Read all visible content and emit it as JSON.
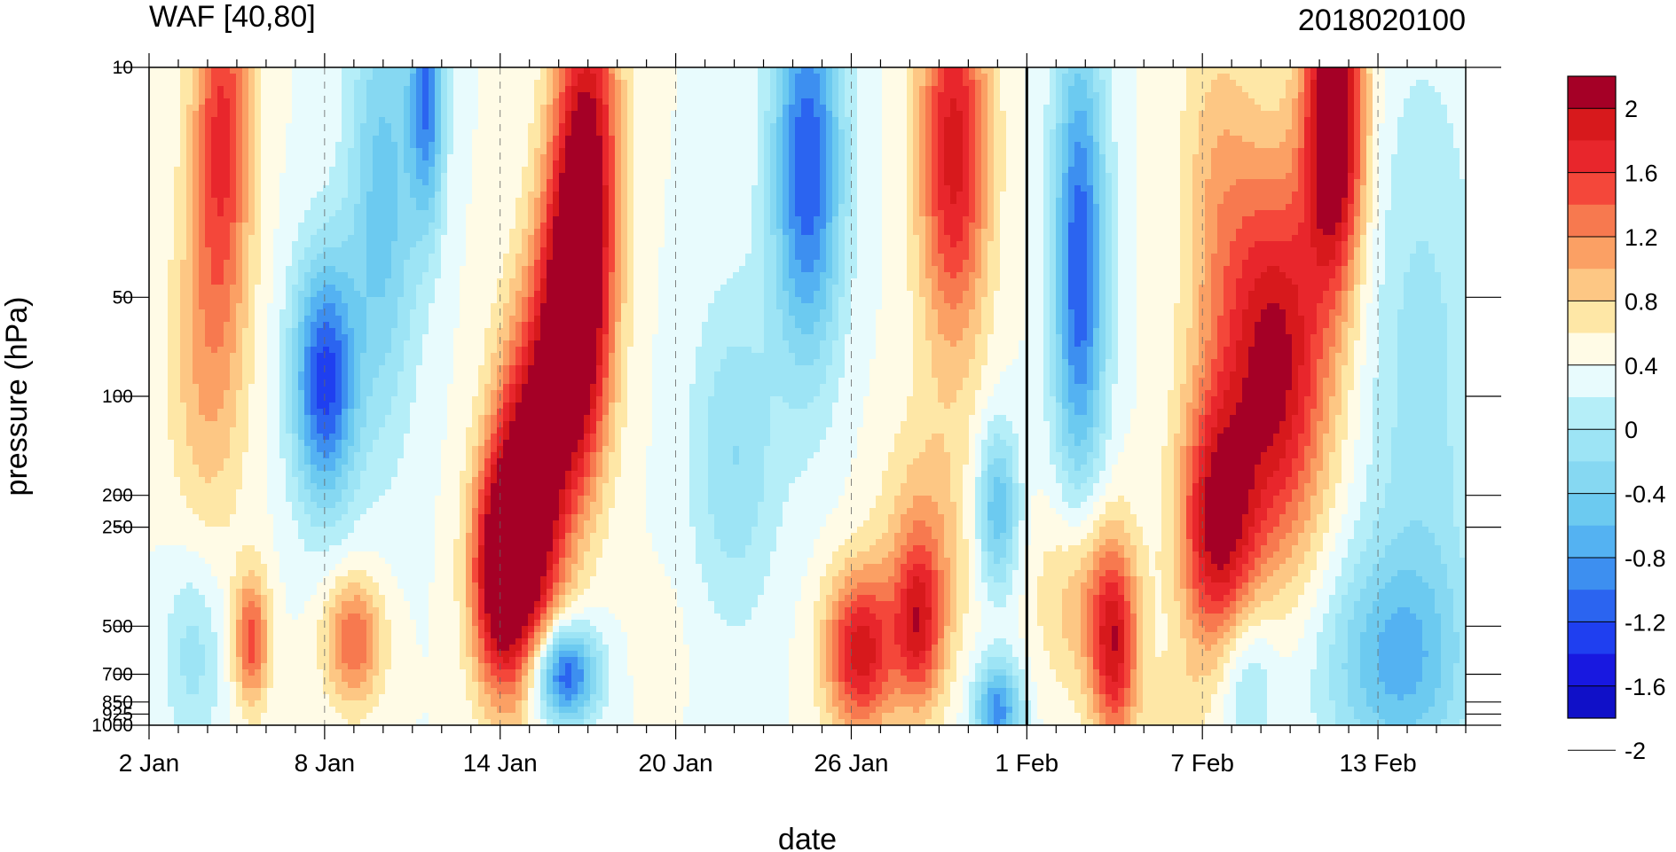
{
  "chart_data": {
    "type": "heatmap",
    "title": "WAF [40,80]",
    "right_title": "2018020100",
    "xlabel": "date",
    "ylabel": "pressure (hPa)",
    "x_ticks": [
      {
        "day": 2,
        "label": "2 Jan"
      },
      {
        "day": 8,
        "label": "8 Jan"
      },
      {
        "day": 14,
        "label": "14 Jan"
      },
      {
        "day": 20,
        "label": "20 Jan"
      },
      {
        "day": 26,
        "label": "26 Jan"
      },
      {
        "day": 32,
        "label": "1 Feb"
      },
      {
        "day": 38,
        "label": "7 Feb"
      },
      {
        "day": 44,
        "label": "13 Feb"
      }
    ],
    "x_range_days": [
      2,
      47
    ],
    "y_ticks": [
      {
        "value": 10,
        "label": "10"
      },
      {
        "value": 50,
        "label": "50"
      },
      {
        "value": 100,
        "label": "100"
      },
      {
        "value": 200,
        "label": "200"
      },
      {
        "value": 250,
        "label": "250"
      },
      {
        "value": 500,
        "label": "500"
      },
      {
        "value": 700,
        "label": "700"
      },
      {
        "value": 850,
        "label": "850"
      },
      {
        "value": 925,
        "label": "925"
      },
      {
        "value": 1000,
        "label": "1000"
      }
    ],
    "y_range": [
      1000,
      10
    ],
    "y_scale": "log",
    "analysis_marker_day": 32,
    "levels": [
      -2.2,
      -2.0,
      -1.8,
      -1.6,
      -1.4,
      -1.2,
      -1.0,
      -0.8,
      -0.6,
      -0.4,
      -0.2,
      0,
      0.2,
      0.4,
      0.6,
      0.8,
      1.0,
      1.2,
      1.4,
      1.6,
      1.8,
      2.0,
      2.2
    ],
    "colorbar": {
      "labels": [
        {
          "value": 2,
          "label": "2"
        },
        {
          "value": 1.6,
          "label": "1.6"
        },
        {
          "value": 1.2,
          "label": "1.2"
        },
        {
          "value": 0.8,
          "label": "0.8"
        },
        {
          "value": 0.4,
          "label": "0.4"
        },
        {
          "value": 0,
          "label": "0"
        },
        {
          "value": -0.4,
          "label": "-0.4"
        },
        {
          "value": -0.8,
          "label": "-0.8"
        },
        {
          "value": -1.2,
          "label": "-1.2"
        },
        {
          "value": -1.6,
          "label": "-1.6"
        },
        {
          "value": -2,
          "label": "-2"
        }
      ],
      "colors": [
        "#a50026",
        "#d7191c",
        "#e8262c",
        "#f4473a",
        "#f7794f",
        "#fba064",
        "#fdc784",
        "#fee7a6",
        "#fffbe6",
        "#e8fbfd",
        "#b5eef8",
        "#9de4f5",
        "#86d8f2",
        "#6ccaf0",
        "#54b2f2",
        "#3d8ff0",
        "#2b64f0",
        "#1f3ff0",
        "#1818e0",
        "#1010c8"
      ]
    },
    "features": [
      {
        "day": 4.5,
        "p": 15,
        "value": 1.2,
        "sx": 1.0,
        "sy": 0.55
      },
      {
        "day": 4.0,
        "p": 80,
        "value": 0.6,
        "sx": 1.3,
        "sy": 0.55
      },
      {
        "day": 8.0,
        "p": 90,
        "value": -1.7,
        "sx": 1.1,
        "sy": 0.38
      },
      {
        "day": 10.0,
        "p": 25,
        "value": -0.9,
        "sx": 1.2,
        "sy": 0.7
      },
      {
        "day": 11.5,
        "p": 12,
        "value": -1.3,
        "sx": 0.6,
        "sy": 0.4
      },
      {
        "day": 16.5,
        "p": 60,
        "value": 2.3,
        "sx": 1.2,
        "sy": 0.5
      },
      {
        "day": 15.0,
        "p": 200,
        "value": 2.0,
        "sx": 1.2,
        "sy": 0.5
      },
      {
        "day": 14.0,
        "p": 350,
        "value": 1.8,
        "sx": 1.0,
        "sy": 0.35
      },
      {
        "day": 17.0,
        "p": 15,
        "value": 1.4,
        "sx": 1.1,
        "sy": 0.5
      },
      {
        "day": 16.2,
        "p": 700,
        "value": -1.7,
        "sx": 1.1,
        "sy": 0.15
      },
      {
        "day": 5.5,
        "p": 550,
        "value": 1.1,
        "sx": 0.6,
        "sy": 0.2
      },
      {
        "day": 9.0,
        "p": 550,
        "value": 1.0,
        "sx": 1.0,
        "sy": 0.2
      },
      {
        "day": 3.5,
        "p": 600,
        "value": -0.5,
        "sx": 1.0,
        "sy": 0.3
      },
      {
        "day": 24.5,
        "p": 20,
        "value": -1.6,
        "sx": 1.2,
        "sy": 0.6
      },
      {
        "day": 22.0,
        "p": 150,
        "value": -0.6,
        "sx": 1.5,
        "sy": 0.5
      },
      {
        "day": 19.5,
        "p": 550,
        "value": 0.1,
        "sx": 1.0,
        "sy": 0.2
      },
      {
        "day": 26.3,
        "p": 600,
        "value": 1.5,
        "sx": 1.2,
        "sy": 0.25
      },
      {
        "day": 28.3,
        "p": 500,
        "value": 1.1,
        "sx": 0.8,
        "sy": 0.25
      },
      {
        "day": 28.5,
        "p": 300,
        "value": 0.6,
        "sx": 1.5,
        "sy": 0.4
      },
      {
        "day": 29.5,
        "p": 18,
        "value": 1.5,
        "sx": 1.2,
        "sy": 0.6
      },
      {
        "day": 31.0,
        "p": 900,
        "value": -1.3,
        "sx": 0.8,
        "sy": 0.15
      },
      {
        "day": 31.0,
        "p": 220,
        "value": -1.0,
        "sx": 0.7,
        "sy": 0.25
      },
      {
        "day": 33.8,
        "p": 40,
        "value": -1.6,
        "sx": 0.9,
        "sy": 0.7
      },
      {
        "day": 35.0,
        "p": 600,
        "value": 1.3,
        "sx": 0.8,
        "sy": 0.3
      },
      {
        "day": 34.0,
        "p": 400,
        "value": 0.7,
        "sx": 1.5,
        "sy": 0.3
      },
      {
        "day": 38.5,
        "p": 25,
        "value": 0.5,
        "sx": 1.3,
        "sy": 0.6
      },
      {
        "day": 40.5,
        "p": 80,
        "value": 1.7,
        "sx": 1.8,
        "sy": 0.6
      },
      {
        "day": 38.5,
        "p": 250,
        "value": 1.6,
        "sx": 1.3,
        "sy": 0.4
      },
      {
        "day": 42.5,
        "p": 14,
        "value": 2.2,
        "sx": 1.0,
        "sy": 0.5
      },
      {
        "day": 39.5,
        "p": 700,
        "value": -0.6,
        "sx": 1.0,
        "sy": 0.25
      },
      {
        "day": 44.5,
        "p": 650,
        "value": -0.9,
        "sx": 2.5,
        "sy": 0.35
      },
      {
        "day": 45.5,
        "p": 100,
        "value": -0.5,
        "sx": 2.0,
        "sy": 1.0
      },
      {
        "day": 37.0,
        "p": 900,
        "value": 0.3,
        "sx": 1.0,
        "sy": 0.15
      }
    ]
  }
}
